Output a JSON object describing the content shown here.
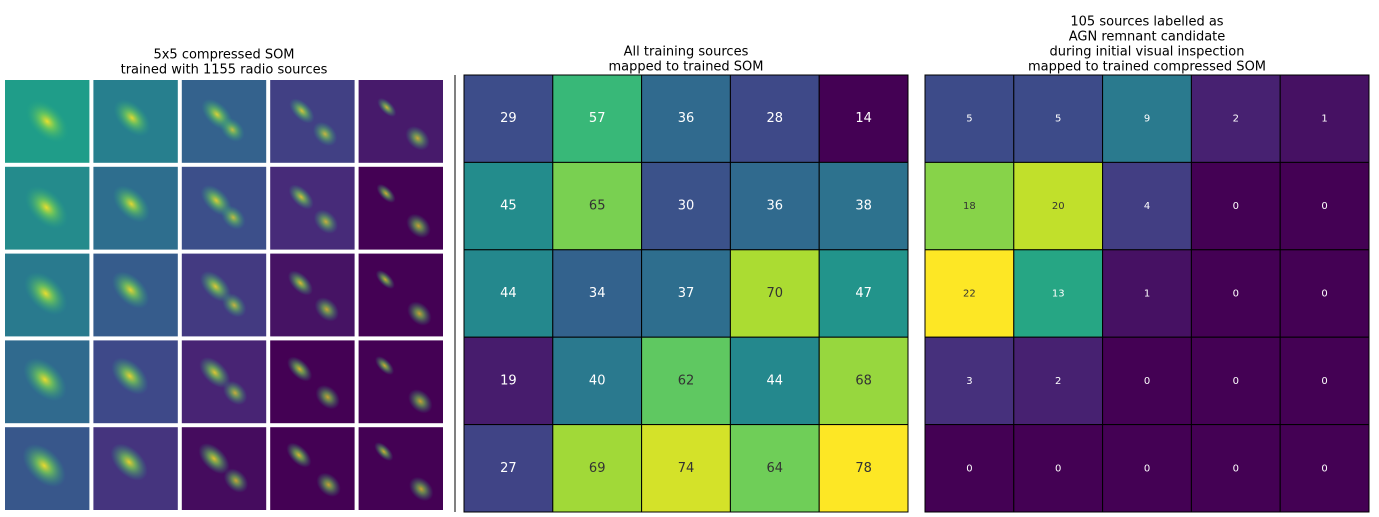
{
  "chart_data": [
    {
      "type": "image-grid",
      "title": [
        "5x5 compressed SOM",
        "trained with 1155 radio sources"
      ]
    },
    {
      "type": "heatmap",
      "colormap": "viridis",
      "title": [
        "All training sources",
        "mapped to trained SOM"
      ],
      "values": [
        [
          29,
          57,
          36,
          28,
          14
        ],
        [
          45,
          65,
          30,
          36,
          38
        ],
        [
          44,
          34,
          37,
          70,
          47
        ],
        [
          19,
          40,
          62,
          44,
          68
        ],
        [
          27,
          69,
          74,
          64,
          78
        ]
      ]
    },
    {
      "type": "heatmap",
      "colormap": "viridis",
      "title": [
        "105 sources labelled as",
        "AGN remnant candidate",
        "during initial visual inspection",
        "mapped to trained compressed SOM"
      ],
      "values": [
        [
          5,
          5,
          9,
          2,
          1
        ],
        [
          18,
          20,
          4,
          0,
          0
        ],
        [
          22,
          13,
          1,
          0,
          0
        ],
        [
          3,
          2,
          0,
          0,
          0
        ],
        [
          0,
          0,
          0,
          0,
          0
        ]
      ]
    }
  ]
}
